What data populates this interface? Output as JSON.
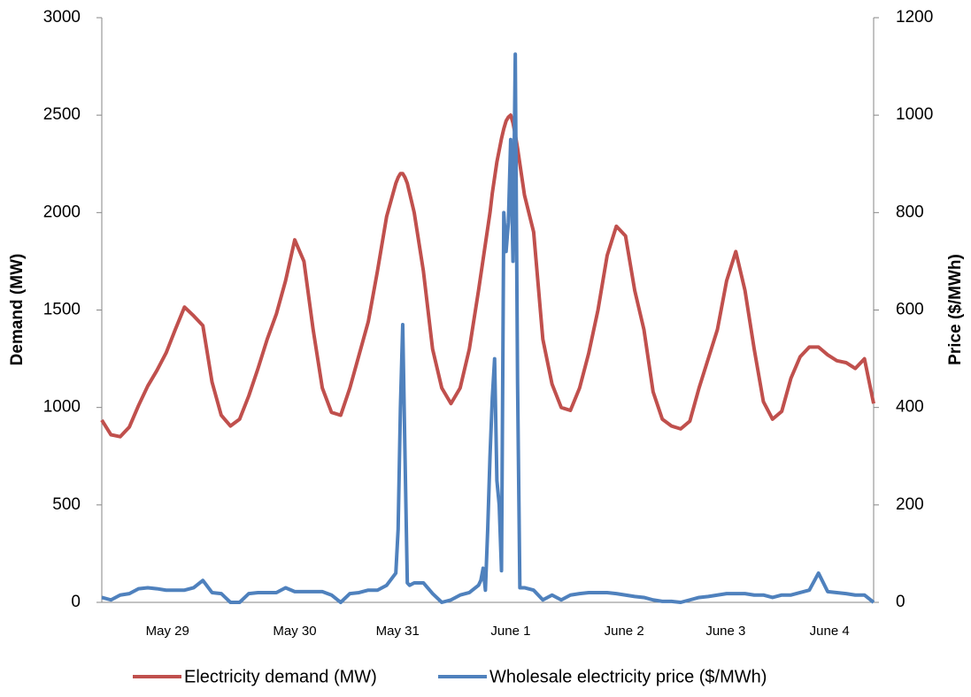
{
  "chart_data": {
    "type": "line",
    "ylabel": "Demand (MW)",
    "y2label": "Price ($/MWh)",
    "x": [
      0,
      2,
      4,
      6,
      8,
      10,
      12,
      14,
      16,
      18,
      20,
      22,
      24,
      26,
      28,
      30,
      32,
      34,
      36,
      38,
      40,
      42,
      44,
      46,
      48,
      50,
      52,
      54,
      56,
      58,
      60,
      62,
      64,
      64.5,
      65,
      65.5,
      66,
      66.5,
      67,
      68,
      70,
      72,
      74,
      76,
      78,
      80,
      82,
      82.5,
      83,
      83.5,
      84,
      84.5,
      85,
      85.5,
      86,
      86.5,
      87,
      87.5,
      88,
      88.5,
      89,
      89.5,
      90,
      90.5,
      91,
      91.5,
      92,
      94,
      96,
      98,
      100,
      102,
      104,
      106,
      108,
      110,
      112,
      114,
      116,
      118,
      120,
      122,
      124,
      126,
      128,
      130,
      132,
      134,
      136,
      138,
      140,
      142,
      144,
      146,
      148,
      150,
      152,
      154,
      156,
      158,
      160,
      162,
      164,
      166,
      168
    ],
    "xlim": [
      0,
      168
    ],
    "xticks": [
      {
        "value": 14.3,
        "label": "May 29"
      },
      {
        "value": 42,
        "label": "May 30"
      },
      {
        "value": 64.4,
        "label": "May 31"
      },
      {
        "value": 89,
        "label": "June 1"
      },
      {
        "value": 113.7,
        "label": "June 2"
      },
      {
        "value": 135.8,
        "label": "June 3"
      },
      {
        "value": 158.4,
        "label": "June 4"
      }
    ],
    "ylim": [
      0,
      3000
    ],
    "yticks": [
      0,
      500,
      1000,
      1500,
      2000,
      2500,
      3000
    ],
    "y2lim": [
      0,
      1200
    ],
    "y2ticks": [
      0,
      200,
      400,
      600,
      800,
      1000,
      1200
    ],
    "legend": "bottom",
    "series": [
      {
        "name": "Electricity demand (MW)",
        "color": "#c0504d",
        "values": [
          935,
          860,
          850,
          900,
          1010,
          1110,
          1190,
          1280,
          1400,
          1515,
          1470,
          1420,
          1130,
          960,
          905,
          940,
          1060,
          1200,
          1350,
          1480,
          1650,
          1860,
          1750,
          1400,
          1100,
          975,
          960,
          1100,
          1270,
          1440,
          1700,
          1980,
          2150,
          2180,
          2200,
          2200,
          2180,
          2150,
          2100,
          2000,
          1700,
          1300,
          1100,
          1020,
          1100,
          1300,
          1600,
          1680,
          1760,
          1840,
          1920,
          2000,
          2100,
          2180,
          2260,
          2320,
          2380,
          2430,
          2470,
          2490,
          2500,
          2460,
          2400,
          2330,
          2250,
          2170,
          2090,
          1900,
          1350,
          1120,
          1000,
          985,
          1100,
          1280,
          1500,
          1780,
          1930,
          1880,
          1600,
          1400,
          1080,
          940,
          905,
          890,
          930,
          1100,
          1250,
          1400,
          1650,
          1800,
          1600,
          1300,
          1030,
          940,
          980,
          1150,
          1260,
          1310,
          1310,
          1270,
          1240,
          1230,
          1200,
          1250,
          1020
        ]
      },
      {
        "name": "Wholesale electricity price ($/MWh)",
        "color": "#4f81bd",
        "axis": "y2",
        "values": [
          10,
          5,
          15,
          18,
          28,
          30,
          28,
          25,
          25,
          25,
          30,
          45,
          20,
          18,
          0,
          0,
          18,
          20,
          20,
          20,
          30,
          22,
          22,
          22,
          22,
          15,
          0,
          18,
          20,
          25,
          25,
          35,
          60,
          150,
          400,
          570,
          300,
          40,
          35,
          40,
          40,
          18,
          0,
          5,
          15,
          20,
          35,
          45,
          70,
          25,
          150,
          300,
          420,
          500,
          250,
          200,
          65,
          800,
          720,
          780,
          950,
          700,
          1125,
          450,
          30,
          30,
          30,
          25,
          5,
          15,
          5,
          15,
          18,
          20,
          20,
          20,
          18,
          15,
          12,
          10,
          5,
          2,
          2,
          0,
          5,
          10,
          12,
          15,
          18,
          18,
          18,
          15,
          15,
          10,
          15,
          15,
          20,
          25,
          60,
          22,
          20,
          18,
          15,
          15,
          0
        ]
      }
    ]
  }
}
